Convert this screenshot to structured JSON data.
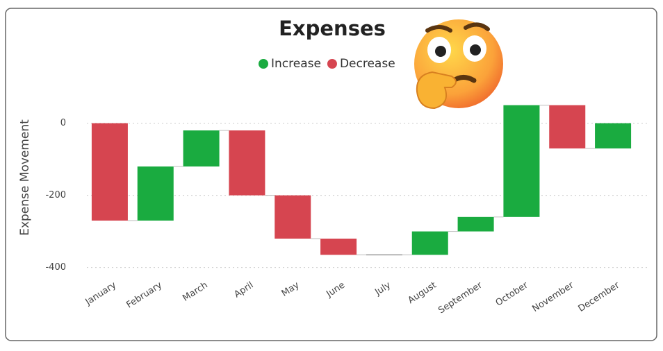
{
  "chart_data": {
    "type": "waterfall",
    "title": "Expenses",
    "y_label": "Expense Movement",
    "categories": [
      "January",
      "February",
      "March",
      "April",
      "May",
      "June",
      "July",
      "August",
      "September",
      "October",
      "November",
      "December"
    ],
    "values": [
      -270,
      150,
      100,
      -180,
      -120,
      -45,
      0,
      65,
      40,
      310,
      -120,
      70
    ],
    "legend": [
      {
        "name": "Increase",
        "color": "#1aab40"
      },
      {
        "name": "Decrease",
        "color": "#d64550"
      }
    ],
    "ylim": [
      -420,
      80
    ],
    "yticks": [
      -400,
      -200,
      0
    ],
    "grid": true
  }
}
